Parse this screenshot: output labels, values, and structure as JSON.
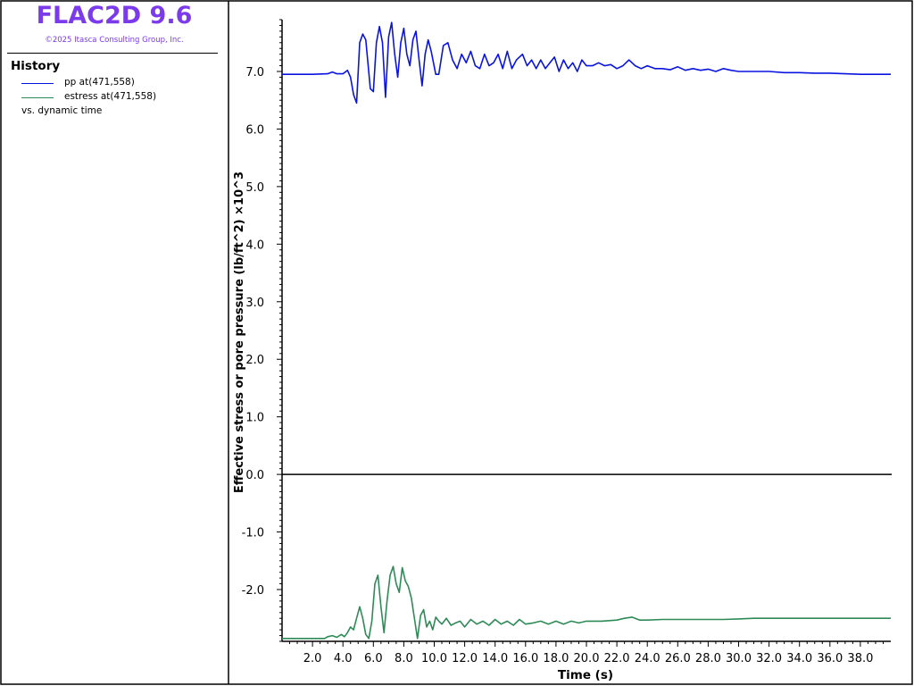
{
  "app": {
    "title": "FLAC2D 9.6",
    "copyright": "©2025 Itasca Consulting Group, Inc."
  },
  "legend": {
    "heading": "History",
    "entries": [
      {
        "label": "pp at(471,558)",
        "color": "#0A14E0"
      },
      {
        "label": "estress at(471,558)",
        "color": "#2E8B57"
      }
    ],
    "vs_label": "vs. dynamic time"
  },
  "chart_data": {
    "type": "line",
    "xlabel": "Time (s)",
    "ylabel": "Effective stress or pore pressure (lb/ft^2) ×10^3",
    "xlim": [
      0,
      40
    ],
    "ylim": [
      -2.9,
      7.9
    ],
    "xticks": [
      "2.0",
      "4.0",
      "6.0",
      "8.0",
      "10.0",
      "12.0",
      "14.0",
      "16.0",
      "18.0",
      "20.0",
      "22.0",
      "24.0",
      "26.0",
      "28.0",
      "30.0",
      "32.0",
      "34.0",
      "36.0",
      "38.0"
    ],
    "yticks": [
      "-2.0",
      "-1.0",
      "0.0",
      "1.0",
      "2.0",
      "3.0",
      "4.0",
      "5.0",
      "6.0",
      "7.0"
    ],
    "grid": false,
    "zero_line": true,
    "series": [
      {
        "name": "pp at(471,558)",
        "color": "#0A14E0",
        "points": [
          [
            0.0,
            6.95
          ],
          [
            1.0,
            6.95
          ],
          [
            2.0,
            6.95
          ],
          [
            3.0,
            6.96
          ],
          [
            3.3,
            6.99
          ],
          [
            3.6,
            6.96
          ],
          [
            4.0,
            6.96
          ],
          [
            4.3,
            7.02
          ],
          [
            4.5,
            6.9
          ],
          [
            4.7,
            6.6
          ],
          [
            4.9,
            6.45
          ],
          [
            5.1,
            7.5
          ],
          [
            5.3,
            7.65
          ],
          [
            5.5,
            7.55
          ],
          [
            5.8,
            6.7
          ],
          [
            6.0,
            6.65
          ],
          [
            6.2,
            7.5
          ],
          [
            6.4,
            7.78
          ],
          [
            6.6,
            7.5
          ],
          [
            6.8,
            6.55
          ],
          [
            7.0,
            7.6
          ],
          [
            7.2,
            7.85
          ],
          [
            7.4,
            7.3
          ],
          [
            7.6,
            6.9
          ],
          [
            7.8,
            7.5
          ],
          [
            8.0,
            7.75
          ],
          [
            8.2,
            7.3
          ],
          [
            8.4,
            7.1
          ],
          [
            8.6,
            7.55
          ],
          [
            8.8,
            7.7
          ],
          [
            9.0,
            7.2
          ],
          [
            9.2,
            6.75
          ],
          [
            9.4,
            7.3
          ],
          [
            9.6,
            7.55
          ],
          [
            9.8,
            7.35
          ],
          [
            10.1,
            6.95
          ],
          [
            10.3,
            6.95
          ],
          [
            10.6,
            7.45
          ],
          [
            10.9,
            7.5
          ],
          [
            11.2,
            7.2
          ],
          [
            11.5,
            7.05
          ],
          [
            11.8,
            7.3
          ],
          [
            12.1,
            7.15
          ],
          [
            12.4,
            7.35
          ],
          [
            12.7,
            7.1
          ],
          [
            13.0,
            7.05
          ],
          [
            13.3,
            7.3
          ],
          [
            13.6,
            7.1
          ],
          [
            13.9,
            7.15
          ],
          [
            14.2,
            7.3
          ],
          [
            14.5,
            7.05
          ],
          [
            14.8,
            7.35
          ],
          [
            15.1,
            7.05
          ],
          [
            15.4,
            7.2
          ],
          [
            15.8,
            7.3
          ],
          [
            16.1,
            7.1
          ],
          [
            16.4,
            7.2
          ],
          [
            16.7,
            7.05
          ],
          [
            17.0,
            7.2
          ],
          [
            17.3,
            7.05
          ],
          [
            17.6,
            7.15
          ],
          [
            17.9,
            7.25
          ],
          [
            18.2,
            7.0
          ],
          [
            18.5,
            7.2
          ],
          [
            18.8,
            7.05
          ],
          [
            19.1,
            7.15
          ],
          [
            19.4,
            7.0
          ],
          [
            19.7,
            7.2
          ],
          [
            20.0,
            7.1
          ],
          [
            20.4,
            7.1
          ],
          [
            20.8,
            7.15
          ],
          [
            21.2,
            7.1
          ],
          [
            21.6,
            7.12
          ],
          [
            22.0,
            7.05
          ],
          [
            22.4,
            7.1
          ],
          [
            22.8,
            7.2
          ],
          [
            23.2,
            7.1
          ],
          [
            23.6,
            7.05
          ],
          [
            24.0,
            7.1
          ],
          [
            24.5,
            7.05
          ],
          [
            25.0,
            7.05
          ],
          [
            25.5,
            7.03
          ],
          [
            26.0,
            7.08
          ],
          [
            26.5,
            7.02
          ],
          [
            27.0,
            7.05
          ],
          [
            27.5,
            7.02
          ],
          [
            28.0,
            7.04
          ],
          [
            28.5,
            7.0
          ],
          [
            29.0,
            7.05
          ],
          [
            29.5,
            7.02
          ],
          [
            30.0,
            7.0
          ],
          [
            31.0,
            7.0
          ],
          [
            32.0,
            7.0
          ],
          [
            33.0,
            6.98
          ],
          [
            34.0,
            6.98
          ],
          [
            35.0,
            6.97
          ],
          [
            36.0,
            6.97
          ],
          [
            37.0,
            6.96
          ],
          [
            38.0,
            6.95
          ],
          [
            39.0,
            6.95
          ],
          [
            40.0,
            6.95
          ]
        ]
      },
      {
        "name": "estress at(471,558)",
        "color": "#2E8B57",
        "points": [
          [
            0.0,
            -2.85
          ],
          [
            1.0,
            -2.85
          ],
          [
            2.0,
            -2.85
          ],
          [
            2.8,
            -2.85
          ],
          [
            3.0,
            -2.82
          ],
          [
            3.3,
            -2.8
          ],
          [
            3.6,
            -2.83
          ],
          [
            3.9,
            -2.78
          ],
          [
            4.1,
            -2.82
          ],
          [
            4.3,
            -2.75
          ],
          [
            4.5,
            -2.65
          ],
          [
            4.7,
            -2.7
          ],
          [
            4.9,
            -2.5
          ],
          [
            5.1,
            -2.3
          ],
          [
            5.3,
            -2.5
          ],
          [
            5.5,
            -2.78
          ],
          [
            5.7,
            -2.85
          ],
          [
            5.9,
            -2.55
          ],
          [
            6.1,
            -1.9
          ],
          [
            6.3,
            -1.75
          ],
          [
            6.5,
            -2.3
          ],
          [
            6.7,
            -2.75
          ],
          [
            6.9,
            -2.2
          ],
          [
            7.1,
            -1.75
          ],
          [
            7.3,
            -1.6
          ],
          [
            7.5,
            -1.9
          ],
          [
            7.7,
            -2.05
          ],
          [
            7.9,
            -1.62
          ],
          [
            8.1,
            -1.85
          ],
          [
            8.3,
            -1.95
          ],
          [
            8.5,
            -2.15
          ],
          [
            8.7,
            -2.5
          ],
          [
            8.9,
            -2.85
          ],
          [
            9.1,
            -2.45
          ],
          [
            9.3,
            -2.35
          ],
          [
            9.5,
            -2.65
          ],
          [
            9.7,
            -2.55
          ],
          [
            9.9,
            -2.7
          ],
          [
            10.1,
            -2.48
          ],
          [
            10.3,
            -2.55
          ],
          [
            10.5,
            -2.6
          ],
          [
            10.8,
            -2.5
          ],
          [
            11.1,
            -2.62
          ],
          [
            11.4,
            -2.58
          ],
          [
            11.7,
            -2.55
          ],
          [
            12.0,
            -2.65
          ],
          [
            12.4,
            -2.52
          ],
          [
            12.8,
            -2.6
          ],
          [
            13.2,
            -2.55
          ],
          [
            13.6,
            -2.62
          ],
          [
            14.0,
            -2.52
          ],
          [
            14.4,
            -2.6
          ],
          [
            14.8,
            -2.55
          ],
          [
            15.2,
            -2.62
          ],
          [
            15.6,
            -2.52
          ],
          [
            16.0,
            -2.6
          ],
          [
            16.5,
            -2.58
          ],
          [
            17.0,
            -2.55
          ],
          [
            17.5,
            -2.6
          ],
          [
            18.0,
            -2.55
          ],
          [
            18.5,
            -2.6
          ],
          [
            19.0,
            -2.55
          ],
          [
            19.5,
            -2.58
          ],
          [
            20.0,
            -2.55
          ],
          [
            21.0,
            -2.55
          ],
          [
            22.0,
            -2.53
          ],
          [
            22.5,
            -2.5
          ],
          [
            23.0,
            -2.48
          ],
          [
            23.5,
            -2.53
          ],
          [
            24.0,
            -2.53
          ],
          [
            25.0,
            -2.52
          ],
          [
            26.0,
            -2.52
          ],
          [
            27.0,
            -2.52
          ],
          [
            28.0,
            -2.52
          ],
          [
            29.0,
            -2.52
          ],
          [
            30.0,
            -2.51
          ],
          [
            31.0,
            -2.5
          ],
          [
            32.0,
            -2.5
          ],
          [
            33.0,
            -2.5
          ],
          [
            34.0,
            -2.5
          ],
          [
            35.0,
            -2.5
          ],
          [
            36.0,
            -2.5
          ],
          [
            37.0,
            -2.5
          ],
          [
            38.0,
            -2.5
          ],
          [
            39.0,
            -2.5
          ],
          [
            40.0,
            -2.5
          ]
        ]
      }
    ]
  }
}
